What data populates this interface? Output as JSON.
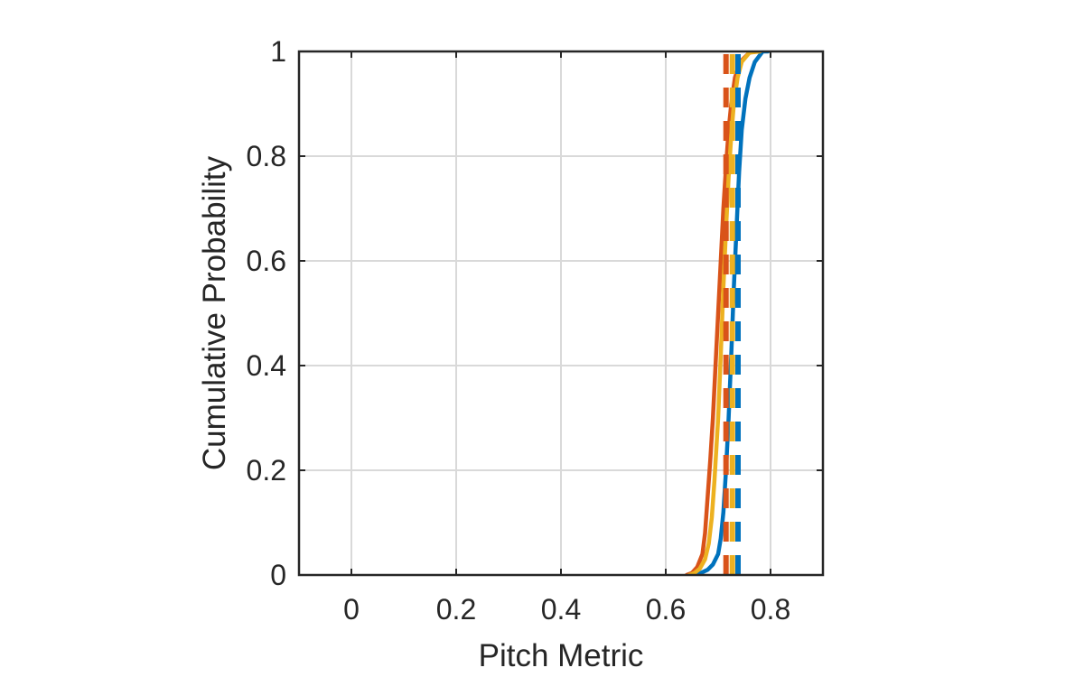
{
  "chart_data": {
    "type": "line",
    "title": "",
    "xlabel": "Pitch Metric",
    "ylabel": "Cumulative Probability",
    "xlim": [
      -0.1,
      0.9
    ],
    "ylim": [
      0,
      1
    ],
    "xticks": [
      0,
      0.2,
      0.4,
      0.6,
      0.8
    ],
    "xtick_labels": [
      "0",
      "0.2",
      "0.4",
      "0.6",
      "0.8"
    ],
    "yticks": [
      0,
      0.2,
      0.4,
      0.6,
      0.8,
      1
    ],
    "ytick_labels": [
      "0",
      "0.2",
      "0.4",
      "0.6",
      "0.8",
      "1"
    ],
    "grid": true,
    "series": [
      {
        "color": "#0072BD",
        "style": "solid",
        "points": [
          [
            0.655,
            0
          ],
          [
            0.665,
            0.003
          ],
          [
            0.68,
            0.01
          ],
          [
            0.69,
            0.02
          ],
          [
            0.7,
            0.04
          ],
          [
            0.705,
            0.07
          ],
          [
            0.71,
            0.12
          ],
          [
            0.715,
            0.2
          ],
          [
            0.72,
            0.3
          ],
          [
            0.725,
            0.42
          ],
          [
            0.73,
            0.55
          ],
          [
            0.735,
            0.66
          ],
          [
            0.74,
            0.77
          ],
          [
            0.745,
            0.85
          ],
          [
            0.752,
            0.91
          ],
          [
            0.76,
            0.95
          ],
          [
            0.77,
            0.98
          ],
          [
            0.785,
            1.0
          ],
          [
            0.795,
            1.0
          ]
        ]
      },
      {
        "color": "#D95319",
        "style": "solid",
        "points": [
          [
            0.64,
            0
          ],
          [
            0.65,
            0.004
          ],
          [
            0.66,
            0.015
          ],
          [
            0.67,
            0.04
          ],
          [
            0.675,
            0.08
          ],
          [
            0.68,
            0.15
          ],
          [
            0.685,
            0.22
          ],
          [
            0.69,
            0.3
          ],
          [
            0.695,
            0.4
          ],
          [
            0.7,
            0.5
          ],
          [
            0.705,
            0.6
          ],
          [
            0.71,
            0.7
          ],
          [
            0.715,
            0.78
          ],
          [
            0.72,
            0.85
          ],
          [
            0.725,
            0.9
          ],
          [
            0.732,
            0.95
          ],
          [
            0.742,
            0.98
          ],
          [
            0.76,
            0.998
          ],
          [
            0.775,
            1.0
          ]
        ]
      },
      {
        "color": "#EDB120",
        "style": "solid",
        "points": [
          [
            0.645,
            0
          ],
          [
            0.655,
            0.004
          ],
          [
            0.665,
            0.012
          ],
          [
            0.675,
            0.03
          ],
          [
            0.682,
            0.06
          ],
          [
            0.688,
            0.11
          ],
          [
            0.693,
            0.18
          ],
          [
            0.7,
            0.3
          ],
          [
            0.705,
            0.42
          ],
          [
            0.71,
            0.55
          ],
          [
            0.715,
            0.66
          ],
          [
            0.72,
            0.76
          ],
          [
            0.725,
            0.84
          ],
          [
            0.73,
            0.9
          ],
          [
            0.737,
            0.95
          ],
          [
            0.745,
            0.98
          ],
          [
            0.76,
            0.998
          ],
          [
            0.78,
            1.0
          ]
        ]
      },
      {
        "color": "#0072BD",
        "style": "dashed",
        "points": [
          [
            0.738,
            0
          ],
          [
            0.738,
            1
          ]
        ]
      },
      {
        "color": "#D95319",
        "style": "dashed",
        "points": [
          [
            0.715,
            0
          ],
          [
            0.715,
            1
          ]
        ]
      },
      {
        "color": "#EDB120",
        "style": "dashed",
        "points": [
          [
            0.727,
            0
          ],
          [
            0.727,
            1
          ]
        ]
      }
    ]
  }
}
